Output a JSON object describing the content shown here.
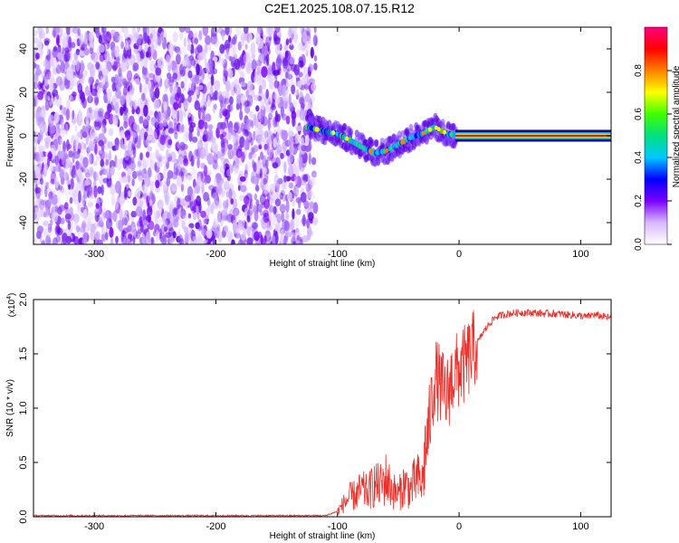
{
  "title": "C2E1.2025.108.07.15.R12",
  "chart_data": [
    {
      "type": "heatmap",
      "name": "spectrogram",
      "xlabel": "Height of straight line (km)",
      "ylabel": "Frequency (Hz)",
      "xlim": [
        -350,
        125
      ],
      "ylim": [
        -50,
        50
      ],
      "x_ticks": [
        -300,
        -200,
        -100,
        0,
        100
      ],
      "y_ticks": [
        -40,
        -20,
        0,
        20,
        40
      ],
      "noise_region_x": [
        -350,
        -118
      ],
      "signal_track": {
        "x": [
          -125,
          -110,
          -100,
          -90,
          -80,
          -70,
          -60,
          -50,
          -40,
          -30,
          -20,
          -10,
          0,
          125
        ],
        "y": [
          4,
          2,
          1,
          -2,
          -5,
          -8,
          -7,
          -4,
          -1,
          1,
          4,
          1,
          0,
          0
        ]
      },
      "strong_tone": {
        "x_start": -3,
        "x_end": 125,
        "y": 0,
        "color": "#e01010"
      },
      "colorbar": {
        "label": "Normalized spectral amplitude",
        "ticks": [
          "0.0",
          "0.2",
          "0.4",
          "0.6",
          "0.8"
        ],
        "range": [
          0,
          1
        ],
        "colors": [
          "#ffffff",
          "#d9b8ff",
          "#7a00ff",
          "#0000ff",
          "#00c8ff",
          "#00e080",
          "#40ff00",
          "#ffff00",
          "#ff8000",
          "#ff0000",
          "#ff0080"
        ]
      }
    },
    {
      "type": "line",
      "name": "snr",
      "xlabel": "Height of straight line (km)",
      "ylabel": "SNR (10 * v/v)",
      "y_multiplier": "(x10^4)",
      "y_multiplier_base": "(x10",
      "y_multiplier_exp": "4",
      "y_multiplier_close": ")",
      "xlim": [
        -350,
        125
      ],
      "ylim": [
        0,
        2.0
      ],
      "x_ticks": [
        -300,
        -200,
        -100,
        0,
        100
      ],
      "y_ticks": [
        "0.0",
        "0.5",
        "1.0",
        "1.5",
        "2.0"
      ],
      "line_color": "#e8302a",
      "series": [
        {
          "x": [
            -350,
            -300,
            -200,
            -110,
            -100,
            -95,
            -90,
            -85,
            -80,
            -75,
            -70,
            -65,
            -60,
            -55,
            -50,
            -45,
            -40,
            -35,
            -30,
            -28,
            -25,
            -22,
            -20,
            -15,
            -10,
            -8,
            -5,
            0,
            5,
            10,
            15,
            20,
            25,
            30,
            40,
            50,
            60,
            70,
            80,
            90,
            100,
            105,
            110,
            120,
            125
          ],
          "y": [
            0.01,
            0.01,
            0.01,
            0.01,
            0.05,
            0.12,
            0.18,
            0.2,
            0.25,
            0.22,
            0.3,
            0.28,
            0.35,
            0.25,
            0.2,
            0.3,
            0.25,
            0.35,
            0.3,
            0.6,
            0.8,
            1.1,
            1.3,
            1.2,
            1.1,
            1.2,
            1.3,
            1.35,
            1.4,
            1.5,
            1.6,
            1.7,
            1.78,
            1.84,
            1.87,
            1.88,
            1.88,
            1.87,
            1.87,
            1.86,
            1.85,
            1.84,
            1.86,
            1.84,
            1.83
          ]
        }
      ]
    }
  ]
}
